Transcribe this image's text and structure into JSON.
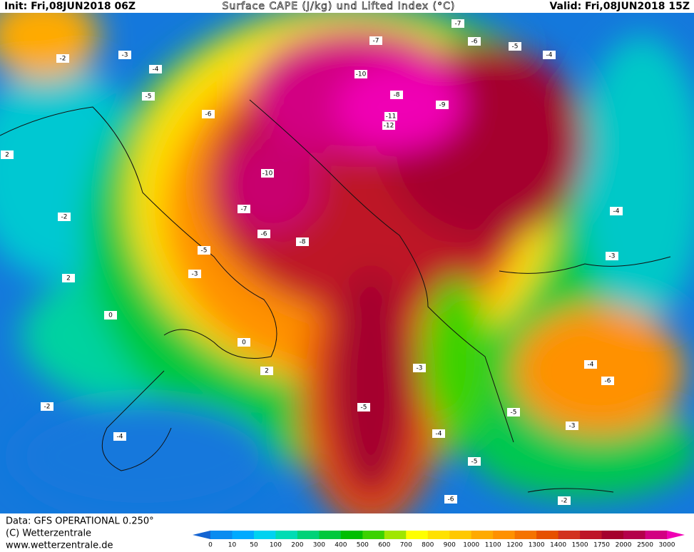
{
  "header": {
    "init": "Init: Fri,08JUN2018 06Z",
    "title": "Surface CAPE (J/kg) und Lifted Index (°C)",
    "valid": "Valid: Fri,08JUN2018 15Z"
  },
  "footer": {
    "data": "Data: GFS OPERATIONAL 0.250°",
    "copyright": "(C) Wetterzentrale",
    "url": "www.wetterzentrale.de"
  },
  "colorbar": {
    "ticks": [
      0,
      10,
      50,
      100,
      200,
      300,
      400,
      500,
      600,
      700,
      800,
      900,
      1000,
      1100,
      1200,
      1300,
      1400,
      1500,
      1750,
      2000,
      2500,
      3000
    ],
    "colors": [
      "#1464d2",
      "#0a8cf0",
      "#00aaff",
      "#00d2f0",
      "#00dcb4",
      "#00d278",
      "#00c83c",
      "#00be00",
      "#3cd200",
      "#a0e600",
      "#ffff00",
      "#ffe100",
      "#ffc800",
      "#ffaa00",
      "#ff9100",
      "#f57300",
      "#e65000",
      "#d2321e",
      "#be1428",
      "#a5002d",
      "#b4004b",
      "#d20082",
      "#f000b4"
    ]
  },
  "contour_labels": [
    -10,
    -10,
    -11,
    -12,
    -9,
    -8,
    -7,
    -7,
    -6,
    -5,
    -4,
    -5,
    -6,
    -4,
    -3,
    -2,
    2,
    -2,
    2,
    -3,
    -5,
    -6,
    -7,
    -8,
    -5,
    -6,
    -5,
    -4,
    -3,
    -4,
    -3,
    -4,
    0,
    0,
    2,
    -2,
    -4,
    -3,
    -5,
    -6,
    -2
  ]
}
